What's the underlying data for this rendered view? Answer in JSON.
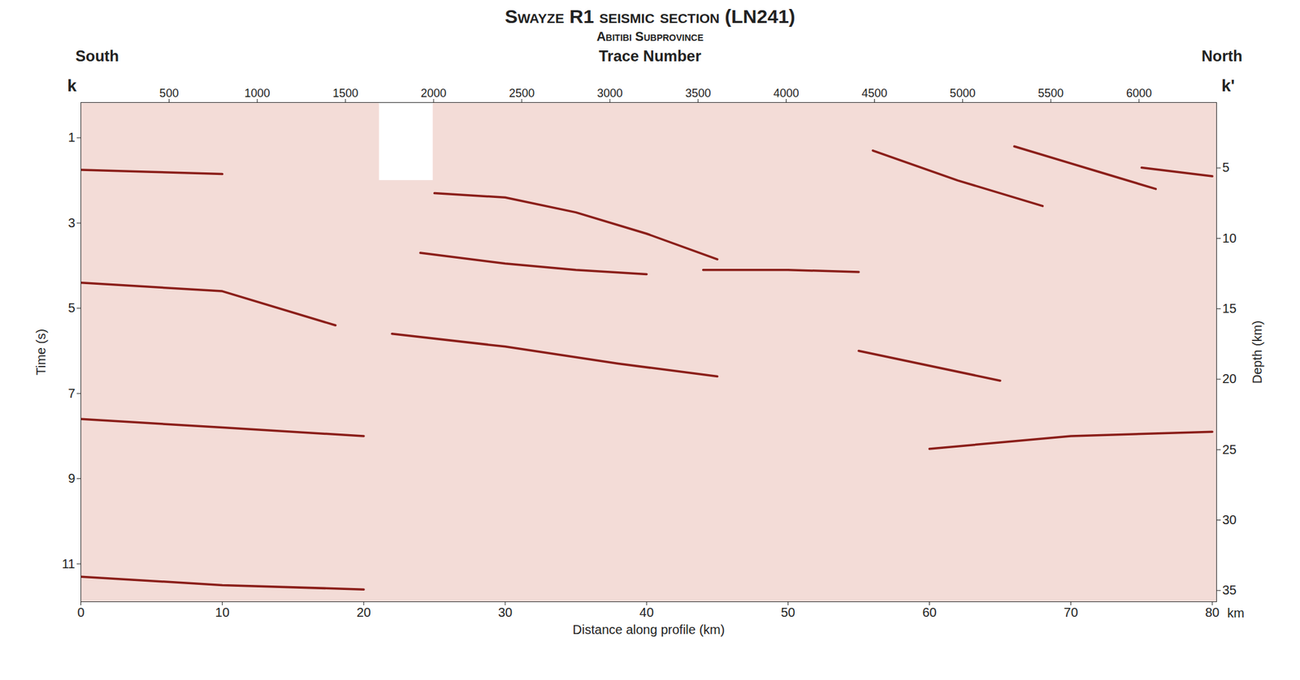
{
  "chart_data": {
    "type": "line",
    "title": "Swayze R1 seismic section (LN241)",
    "subtitle": "Abitibi Subprovince",
    "direction_labels": {
      "left": "South",
      "right": "North"
    },
    "corner_labels": {
      "left": "k",
      "right": "k'"
    },
    "x_label": "Distance along profile (km)",
    "x_unit": "km",
    "y_label": "Time (s)",
    "x2_label": "Trace Number",
    "y2_label": "Depth (km)",
    "xlim": [
      0,
      80.3
    ],
    "xticks": [
      0,
      10,
      20,
      30,
      40,
      50,
      60,
      70,
      80
    ],
    "ylim": [
      0.17,
      11.89
    ],
    "yticks": [
      1,
      3,
      5,
      7,
      9,
      11
    ],
    "x2lim": [
      0,
      6440
    ],
    "x2ticks": [
      500,
      1000,
      1500,
      2000,
      2500,
      3000,
      3500,
      4000,
      4500,
      5000,
      5500,
      6000
    ],
    "y2lim": [
      0.35,
      35.8
    ],
    "y2ticks": [
      5,
      10,
      15,
      20,
      25,
      30,
      35
    ],
    "grid": false,
    "data_gap": {
      "x": [
        21.1,
        24.9
      ],
      "y": [
        0.17,
        2.0
      ]
    },
    "series": [
      {
        "color": "#8b1f1a",
        "x": [
          0,
          5,
          10
        ],
        "values": [
          1.75,
          1.8,
          1.85
        ]
      },
      {
        "color": "#8b1f1a",
        "x": [
          25,
          30,
          35,
          40,
          45
        ],
        "values": [
          2.3,
          2.4,
          2.75,
          3.25,
          3.85
        ]
      },
      {
        "color": "#8b1f1a",
        "x": [
          24,
          30,
          35,
          40
        ],
        "values": [
          3.7,
          3.95,
          4.1,
          4.2
        ]
      },
      {
        "color": "#8b1f1a",
        "x": [
          44,
          50,
          55
        ],
        "values": [
          4.1,
          4.1,
          4.15
        ]
      },
      {
        "color": "#8b1f1a",
        "x": [
          0,
          10,
          18
        ],
        "values": [
          4.4,
          4.6,
          5.4
        ]
      },
      {
        "color": "#8b1f1a",
        "x": [
          22,
          30,
          38,
          45
        ],
        "values": [
          5.6,
          5.9,
          6.3,
          6.6
        ]
      },
      {
        "color": "#8b1f1a",
        "x": [
          55,
          65
        ],
        "values": [
          6.0,
          6.7
        ]
      },
      {
        "color": "#8b1f1a",
        "x": [
          0,
          10,
          20
        ],
        "values": [
          7.6,
          7.8,
          8.0
        ]
      },
      {
        "color": "#8b1f1a",
        "x": [
          60,
          70,
          80
        ],
        "values": [
          8.3,
          8.0,
          7.9
        ]
      },
      {
        "color": "#8b1f1a",
        "x": [
          0,
          10,
          20
        ],
        "values": [
          11.3,
          11.5,
          11.6
        ]
      },
      {
        "color": "#8b1f1a",
        "x": [
          56,
          62,
          68
        ],
        "values": [
          1.3,
          2.0,
          2.6
        ]
      },
      {
        "color": "#8b1f1a",
        "x": [
          66,
          72,
          76
        ],
        "values": [
          1.2,
          1.8,
          2.2
        ]
      },
      {
        "color": "#8b1f1a",
        "x": [
          75,
          80
        ],
        "values": [
          1.7,
          1.9
        ]
      }
    ]
  }
}
